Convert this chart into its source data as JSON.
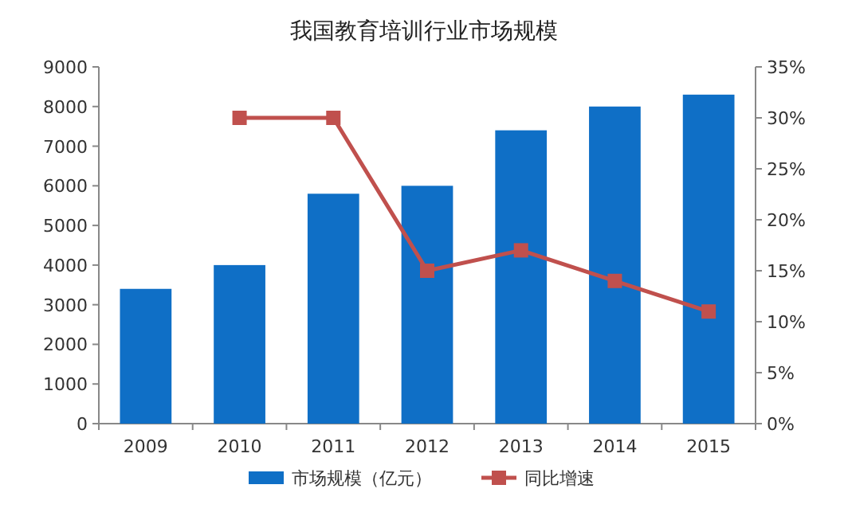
{
  "chart_data": {
    "type": "bar",
    "title": "我国教育培训行业市场规模",
    "categories": [
      "2009",
      "2010",
      "2011",
      "2012",
      "2013",
      "2014",
      "2015"
    ],
    "series": [
      {
        "name": "市场规模（亿元）",
        "color": "#0f6fc6",
        "values": [
          3400,
          4000,
          5800,
          6000,
          7400,
          8000,
          8300
        ]
      },
      {
        "name": "同比增速",
        "type": "line",
        "axis": "y2",
        "color": "#c0504d",
        "values": [
          null,
          30,
          30,
          15,
          17,
          14,
          11
        ]
      }
    ],
    "ylim": [
      0,
      9000
    ],
    "yticks": [
      0,
      1000,
      2000,
      3000,
      4000,
      5000,
      6000,
      7000,
      8000,
      9000
    ],
    "y2lim": [
      0,
      35
    ],
    "y2ticks": [
      {
        "value": 0,
        "label": "0%"
      },
      {
        "value": 5,
        "label": "5%"
      },
      {
        "value": 10,
        "label": "10%"
      },
      {
        "value": 15,
        "label": "15%"
      },
      {
        "value": 20,
        "label": "20%"
      },
      {
        "value": 25,
        "label": "25%"
      },
      {
        "value": 30,
        "label": "30%"
      },
      {
        "value": 35,
        "label": "35%"
      }
    ],
    "marker": "square",
    "legend": "bottom",
    "grid": false
  }
}
